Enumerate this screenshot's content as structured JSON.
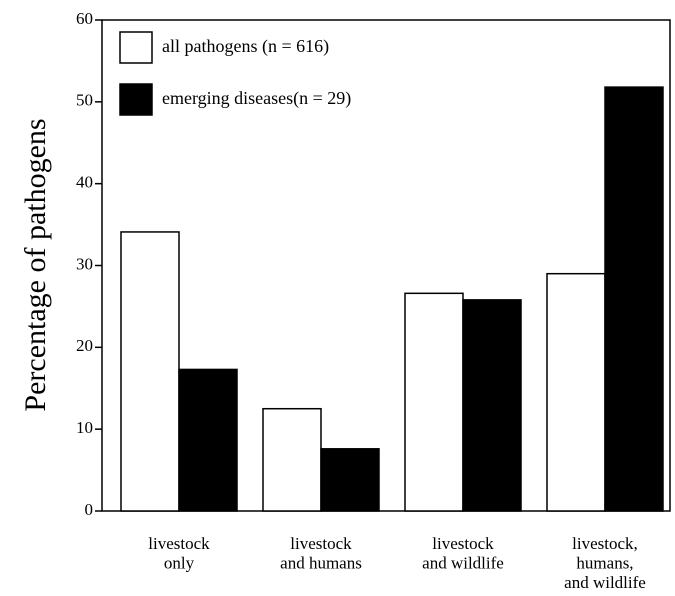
{
  "chart_data": {
    "type": "bar",
    "y_label": "Percentage of pathogens",
    "categories": [
      "livestock\nonly",
      "livestock\nand humans",
      "livestock\nand wildlife",
      "livestock,\nhumans,\nand wildlife"
    ],
    "series": [
      {
        "name": "all pathogens (n = 616)",
        "color": "#ffffff",
        "values": [
          34.1,
          12.5,
          26.6,
          29.0
        ]
      },
      {
        "name": "emerging diseases(n = 29)",
        "color": "#000000",
        "values": [
          17.3,
          7.6,
          25.8,
          51.8
        ]
      }
    ],
    "ylim": [
      0,
      60
    ],
    "yticks": [
      0,
      10,
      20,
      30,
      40,
      50,
      60
    ],
    "legend": "upper left"
  }
}
